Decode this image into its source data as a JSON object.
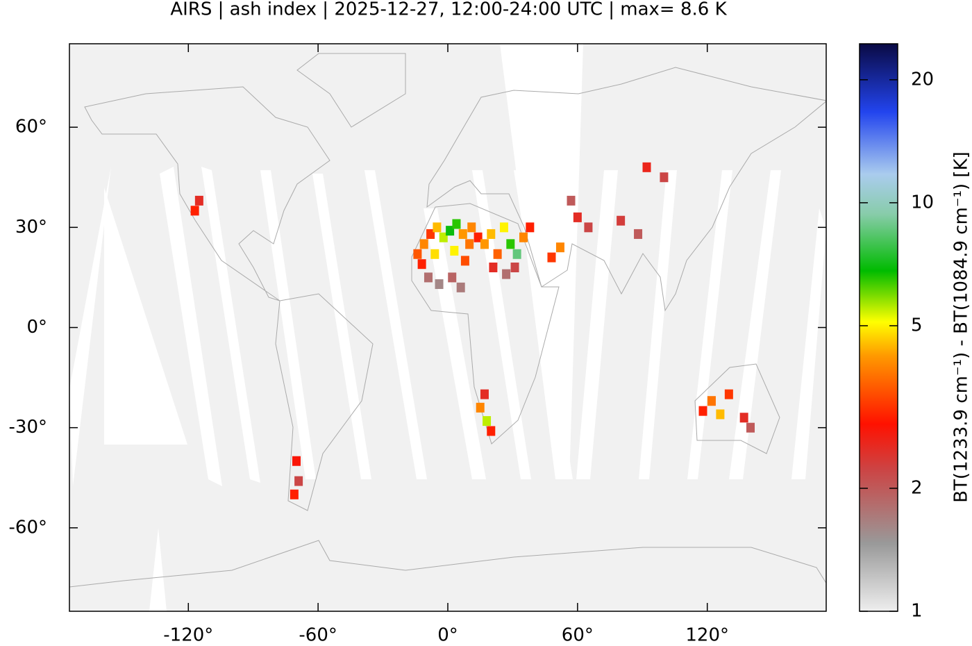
{
  "chart_data": {
    "type": "map",
    "title": "AIRS | ash index | 2025-12-27, 12:00-24:00 UTC | max= 8.6 K",
    "xlim": [
      -175,
      175
    ],
    "ylim": [
      -85,
      85
    ],
    "xticks": [
      {
        "value": -120,
        "label": "-120°"
      },
      {
        "value": -60,
        "label": "-60°"
      },
      {
        "value": 0,
        "label": "0°"
      },
      {
        "value": 60,
        "label": "60°"
      },
      {
        "value": 120,
        "label": "120°"
      }
    ],
    "yticks": [
      {
        "value": 60,
        "label": "60°"
      },
      {
        "value": 30,
        "label": "30°"
      },
      {
        "value": 0,
        "label": "0°"
      },
      {
        "value": -30,
        "label": "-30°"
      },
      {
        "value": -60,
        "label": "-60°"
      }
    ],
    "x": [
      -14,
      -11,
      -8,
      -5,
      -2,
      1,
      4,
      7,
      10,
      -12,
      -6,
      3,
      8,
      11,
      14,
      -9,
      -4,
      2,
      6,
      17,
      20,
      23,
      26,
      29,
      32,
      35,
      21,
      27,
      31,
      38,
      48,
      52,
      60,
      65,
      57,
      80,
      88,
      92,
      100,
      15,
      18,
      20,
      17,
      118,
      122,
      126,
      130,
      137,
      140,
      -70,
      -69,
      -71,
      -117,
      -115
    ],
    "y": [
      22,
      25,
      28,
      30,
      27,
      29,
      31,
      28,
      25,
      19,
      22,
      23,
      20,
      30,
      27,
      15,
      13,
      15,
      12,
      25,
      28,
      22,
      30,
      25,
      22,
      27,
      18,
      16,
      18,
      30,
      21,
      24,
      33,
      30,
      38,
      32,
      28,
      48,
      45,
      -24,
      -28,
      -31,
      -20,
      -25,
      -22,
      -26,
      -20,
      -27,
      -30,
      -40,
      -46,
      -50,
      35,
      38
    ],
    "values": [
      3.5,
      4.0,
      3.2,
      4.5,
      5.5,
      7.0,
      6.5,
      4.2,
      3.8,
      3.0,
      4.8,
      5.0,
      3.4,
      4.0,
      3.0,
      1.8,
      1.6,
      1.9,
      1.7,
      4.2,
      4.5,
      3.6,
      5.0,
      6.5,
      8.6,
      4.0,
      2.5,
      1.8,
      2.2,
      3.0,
      3.2,
      4.0,
      2.5,
      2.2,
      2.0,
      2.3,
      2.0,
      2.6,
      2.2,
      4.0,
      5.5,
      3.0,
      2.5,
      3.0,
      3.8,
      4.5,
      3.2,
      2.5,
      2.0,
      2.8,
      2.2,
      3.0,
      3.0,
      2.5
    ],
    "colorbar": {
      "label": "BT(1233.9 cm⁻¹) - BT(1084.9 cm⁻¹) [K]",
      "scale": "log",
      "lim": [
        1,
        24.5
      ],
      "ticks": [
        1,
        2,
        5,
        10,
        20
      ]
    }
  }
}
